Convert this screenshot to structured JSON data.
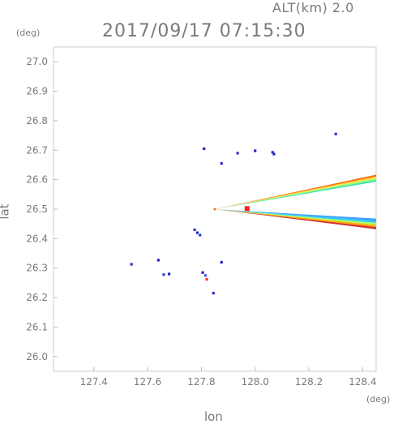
{
  "header": {
    "altitude_label": "ALT(km) 2.0",
    "timestamp": "2017/09/17 07:15:30"
  },
  "axes": {
    "x_unit": "(deg)",
    "y_unit": "(deg)"
  },
  "chart_data": {
    "type": "scatter",
    "title": "2017/09/17 07:15:30",
    "subtitle": "ALT(km) 2.0",
    "xlabel": "lon",
    "ylabel": "lat",
    "xlim": [
      127.25,
      128.45
    ],
    "ylim": [
      25.95,
      27.05
    ],
    "xticks": [
      127.4,
      127.6,
      127.8,
      128.0,
      128.2,
      128.4
    ],
    "yticks": [
      26.0,
      26.1,
      26.2,
      26.3,
      26.4,
      26.5,
      26.6,
      26.7,
      26.8,
      26.9,
      27.0
    ],
    "grid": false,
    "radar_center": [
      127.85,
      26.5
    ],
    "beams": [
      {
        "from": [
          127.85,
          26.5
        ],
        "to": [
          128.45,
          26.605
        ],
        "width_deg": 0.012,
        "colors": [
          "#ff6a00",
          "#ffd24a",
          "#a8ff66",
          "#3ee0b0"
        ]
      },
      {
        "from": [
          127.85,
          26.5
        ],
        "to": [
          128.45,
          26.45
        ],
        "width_deg": 0.018,
        "colors": [
          "#3ea0ff",
          "#30c8ff",
          "#a8ff66",
          "#ffaa00",
          "#d43030"
        ]
      }
    ],
    "points": [
      {
        "x": 127.54,
        "y": 26.313,
        "color": "#3030d0"
      },
      {
        "x": 127.64,
        "y": 26.327,
        "color": "#2020c8"
      },
      {
        "x": 127.66,
        "y": 26.278,
        "color": "#4040e0"
      },
      {
        "x": 127.68,
        "y": 26.28,
        "color": "#2020c8"
      },
      {
        "x": 127.775,
        "y": 26.43,
        "color": "#3040d0"
      },
      {
        "x": 127.785,
        "y": 26.42,
        "color": "#2030c0"
      },
      {
        "x": 127.795,
        "y": 26.412,
        "color": "#3040d0"
      },
      {
        "x": 127.805,
        "y": 26.285,
        "color": "#2020c8"
      },
      {
        "x": 127.815,
        "y": 26.275,
        "color": "#5050f0"
      },
      {
        "x": 127.82,
        "y": 26.262,
        "color": "#ff3030"
      },
      {
        "x": 127.845,
        "y": 26.215,
        "color": "#3030d0"
      },
      {
        "x": 127.81,
        "y": 26.705,
        "color": "#2020c8"
      },
      {
        "x": 127.875,
        "y": 26.655,
        "color": "#3030d0"
      },
      {
        "x": 127.875,
        "y": 26.32,
        "color": "#2020c8"
      },
      {
        "x": 127.935,
        "y": 26.69,
        "color": "#3030d0"
      },
      {
        "x": 128.0,
        "y": 26.698,
        "color": "#2020c8"
      },
      {
        "x": 128.065,
        "y": 26.693,
        "color": "#3030d0"
      },
      {
        "x": 128.07,
        "y": 26.687,
        "color": "#2020c8"
      },
      {
        "x": 128.3,
        "y": 26.755,
        "color": "#3030d0"
      },
      {
        "x": 127.97,
        "y": 26.502,
        "color": "#ff2020",
        "r": 3
      }
    ]
  }
}
